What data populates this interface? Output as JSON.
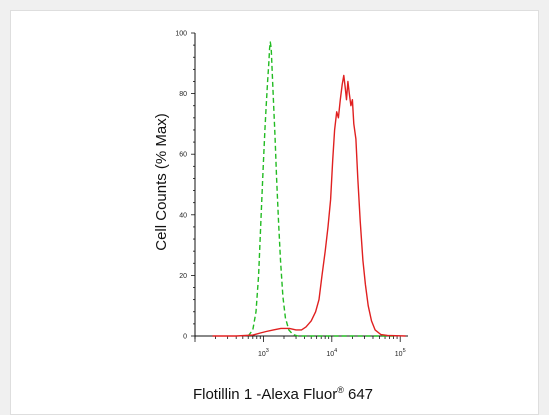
{
  "chart_data": {
    "type": "line",
    "title": "",
    "xlabel_main": "Flotillin 1 -Alexa Fluor",
    "xlabel_sup": "®",
    "xlabel_tail": " 647",
    "ylabel": "Cell Counts (% Max)",
    "x_scale": "log",
    "xlim": [
      100,
      130000
    ],
    "ylim": [
      0,
      100
    ],
    "y_ticks": [
      0,
      20,
      40,
      60,
      80,
      100
    ],
    "x_ticks": [
      {
        "value": 1000,
        "base": "10",
        "exp": "3"
      },
      {
        "value": 10000,
        "base": "10",
        "exp": "4"
      },
      {
        "value": 100000,
        "base": "10",
        "exp": "5"
      }
    ],
    "grid": false,
    "series": [
      {
        "color": "#22bb22",
        "dash": "dashed",
        "points": [
          [
            600,
            0
          ],
          [
            700,
            2
          ],
          [
            780,
            8
          ],
          [
            850,
            20
          ],
          [
            920,
            38
          ],
          [
            990,
            55
          ],
          [
            1050,
            68
          ],
          [
            1100,
            76
          ],
          [
            1150,
            84
          ],
          [
            1200,
            90
          ],
          [
            1230,
            95
          ],
          [
            1260,
            97
          ],
          [
            1300,
            95
          ],
          [
            1340,
            88
          ],
          [
            1400,
            78
          ],
          [
            1480,
            66
          ],
          [
            1560,
            52
          ],
          [
            1660,
            38
          ],
          [
            1780,
            25
          ],
          [
            1930,
            13
          ],
          [
            2100,
            6
          ],
          [
            2350,
            2
          ],
          [
            2700,
            0.5
          ],
          [
            3200,
            0
          ],
          [
            10000,
            0
          ],
          [
            30000,
            0
          ],
          [
            80000,
            0
          ]
        ]
      },
      {
        "color": "#e02020",
        "dash": "solid",
        "points": [
          [
            180,
            0
          ],
          [
            400,
            0
          ],
          [
            700,
            0.3
          ],
          [
            900,
            1
          ],
          [
            1100,
            1.5
          ],
          [
            1400,
            2
          ],
          [
            1800,
            2.5
          ],
          [
            2400,
            2.5
          ],
          [
            3000,
            2
          ],
          [
            3600,
            2
          ],
          [
            4200,
            3
          ],
          [
            5000,
            5
          ],
          [
            5800,
            8
          ],
          [
            6500,
            12
          ],
          [
            7200,
            20
          ],
          [
            8000,
            28
          ],
          [
            8800,
            36
          ],
          [
            9600,
            45
          ],
          [
            10300,
            58
          ],
          [
            11000,
            68
          ],
          [
            11800,
            74
          ],
          [
            12500,
            72
          ],
          [
            13300,
            78
          ],
          [
            14200,
            83
          ],
          [
            15000,
            86
          ],
          [
            15700,
            82
          ],
          [
            16400,
            78
          ],
          [
            17200,
            84
          ],
          [
            18000,
            80
          ],
          [
            19000,
            76
          ],
          [
            20000,
            78
          ],
          [
            21000,
            70
          ],
          [
            22500,
            65
          ],
          [
            24000,
            52
          ],
          [
            26000,
            38
          ],
          [
            28500,
            25
          ],
          [
            31000,
            17
          ],
          [
            34000,
            10
          ],
          [
            38000,
            5
          ],
          [
            43000,
            2
          ],
          [
            52000,
            0.5
          ],
          [
            65000,
            0.2
          ],
          [
            85000,
            0.1
          ],
          [
            120000,
            0
          ]
        ]
      }
    ]
  }
}
